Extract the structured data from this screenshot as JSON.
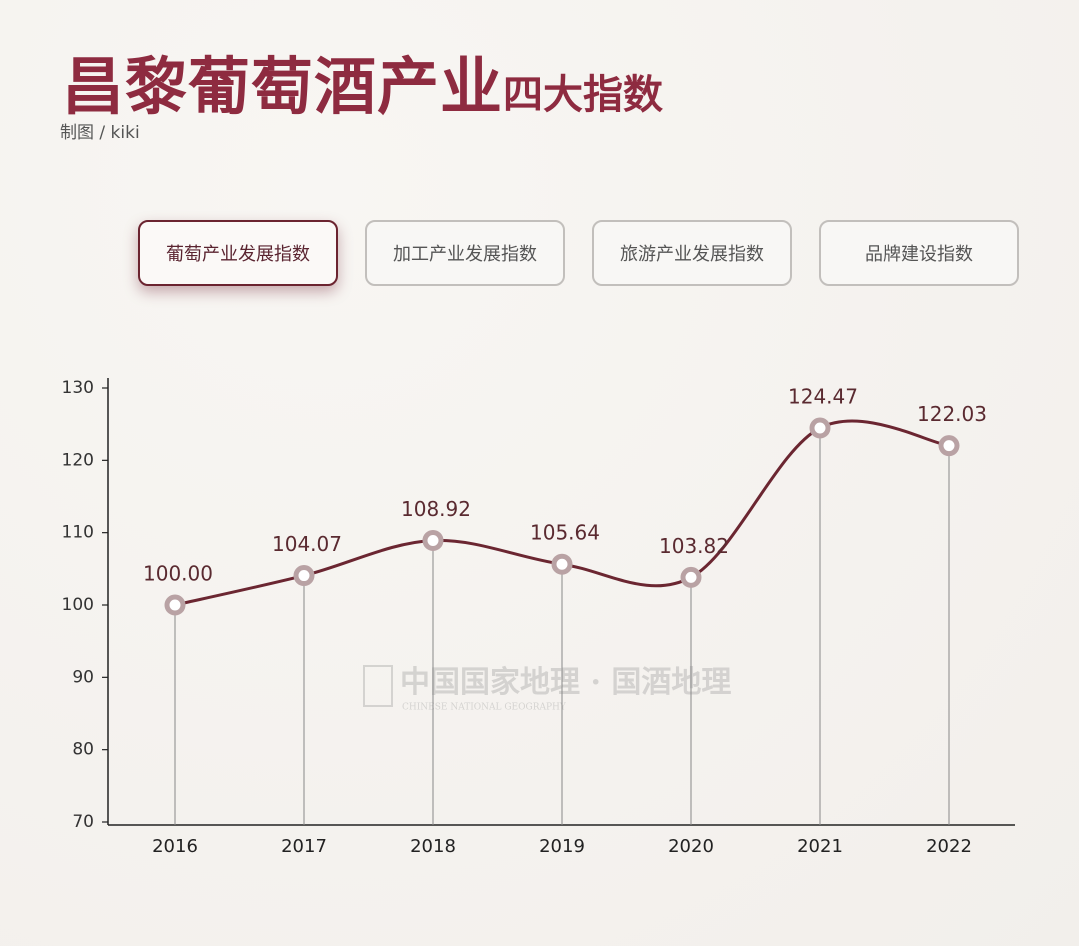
{
  "header": {
    "title": "昌黎葡萄酒产业",
    "title_suffix": "四大指数",
    "credit": "制图 / kiki"
  },
  "tabs": [
    "葡萄产业发展指数",
    "加工产业发展指数",
    "旅游产业发展指数",
    "品牌建设指数"
  ],
  "active_tab": 0,
  "watermark": {
    "text": "中国国家地理 · 国酒地理",
    "subtext": "CHINESE NATIONAL GEOGRAPHY"
  },
  "chart_data": {
    "type": "line",
    "categories": [
      "2016",
      "2017",
      "2018",
      "2019",
      "2020",
      "2021",
      "2022"
    ],
    "values": [
      100.0,
      104.07,
      108.92,
      105.64,
      103.82,
      124.47,
      122.03
    ],
    "value_labels": [
      "100.00",
      "104.07",
      "108.92",
      "105.64",
      "103.82",
      "124.47",
      "122.03"
    ],
    "color": "#6b2631",
    "marker_color": "#b9a2a4",
    "ylim": [
      70,
      130
    ],
    "yticks": [
      70,
      80,
      90,
      100,
      110,
      120,
      130
    ],
    "drop_lines": true
  }
}
